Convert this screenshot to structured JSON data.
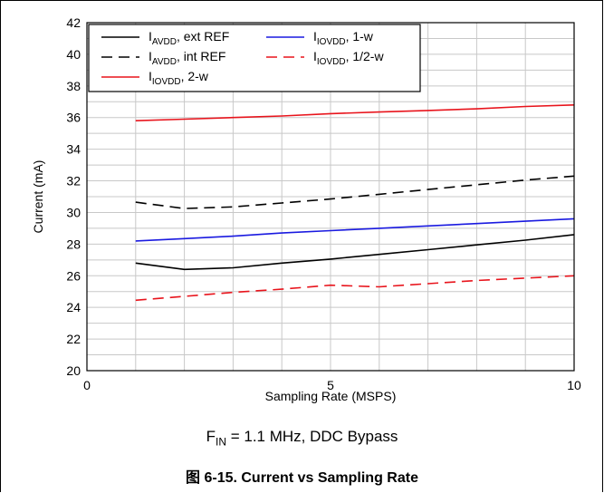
{
  "chart_data": {
    "type": "line",
    "xlabel": "Sampling Rate (MSPS)",
    "ylabel": "Current (mA)",
    "xlim": [
      0,
      10
    ],
    "ylim": [
      20,
      42
    ],
    "x_ticks": [
      0,
      5,
      10
    ],
    "y_ticks": [
      20,
      22,
      24,
      26,
      28,
      30,
      32,
      34,
      36,
      38,
      40,
      42
    ],
    "x_tick_labels": [
      "0",
      "5",
      "10"
    ],
    "y_tick_labels": [
      "20",
      "22",
      "24",
      "26",
      "28",
      "30",
      "32",
      "34",
      "36",
      "38",
      "40",
      "42"
    ],
    "grid": true,
    "legend_position": "top-left",
    "x": [
      1,
      2,
      3,
      4,
      5,
      6,
      7,
      8,
      9,
      10
    ],
    "series": [
      {
        "name_main": "I",
        "name_sub": "AVDD",
        "name_rest": ", ext REF",
        "color": "#000000",
        "dash": "solid",
        "values": [
          26.8,
          26.4,
          26.5,
          26.8,
          27.05,
          27.35,
          27.65,
          27.95,
          28.25,
          28.6
        ]
      },
      {
        "name_main": "I",
        "name_sub": "AVDD",
        "name_rest": ", int REF",
        "color": "#000000",
        "dash": "dashed",
        "values": [
          30.65,
          30.25,
          30.35,
          30.6,
          30.85,
          31.15,
          31.45,
          31.75,
          32.05,
          32.3
        ]
      },
      {
        "name_main": "I",
        "name_sub": "IOVDD",
        "name_rest": ", 2-w",
        "color": "#e8141c",
        "dash": "solid",
        "values": [
          35.8,
          35.9,
          36.0,
          36.1,
          36.25,
          36.35,
          36.45,
          36.55,
          36.7,
          36.8
        ]
      },
      {
        "name_main": "I",
        "name_sub": "IOVDD",
        "name_rest": ", 1-w",
        "color": "#1a1ae0",
        "dash": "solid",
        "values": [
          28.2,
          28.35,
          28.5,
          28.7,
          28.85,
          29.0,
          29.15,
          29.3,
          29.45,
          29.6
        ]
      },
      {
        "name_main": "I",
        "name_sub": "IOVDD",
        "name_rest": ", 1/2-w",
        "color": "#e8141c",
        "dash": "dashed",
        "values": [
          24.45,
          24.7,
          24.95,
          25.15,
          25.4,
          25.3,
          25.5,
          25.7,
          25.85,
          26.0
        ]
      }
    ]
  },
  "condition": {
    "main": "F",
    "sub": "IN",
    "rest": " = 1.1 MHz, DDC Bypass"
  },
  "caption": "图 6-15. Current vs Sampling Rate"
}
